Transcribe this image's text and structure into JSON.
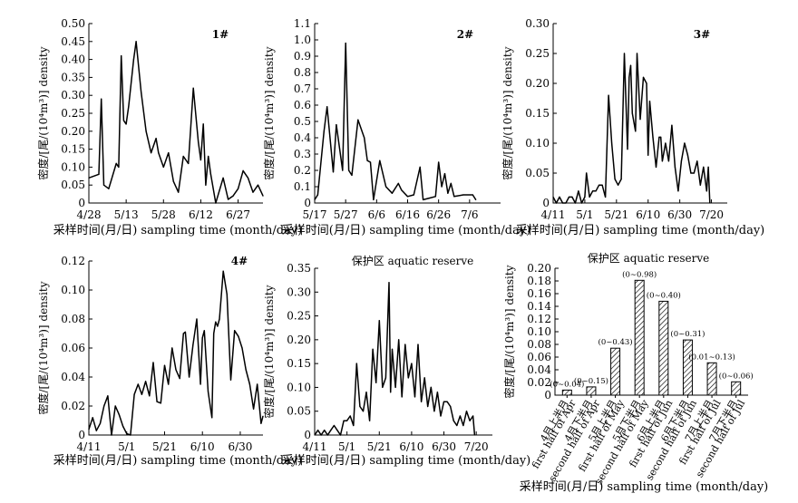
{
  "chart_data": [
    {
      "type": "line",
      "title": "1#",
      "xlabel": "采样时间(月/日) sampling time (month/day)",
      "ylabel": "密度/[尾/(10⁴m³)] density",
      "x_ticks": [
        "4/28",
        "5/13",
        "5/28",
        "6/12",
        "6/27"
      ],
      "y_ticks": [
        "0",
        "0.05",
        "0.10",
        "0.15",
        "0.20",
        "0.25",
        "0.30",
        "0.35",
        "0.40",
        "0.45",
        "0.50"
      ],
      "ylim": [
        0,
        0.5
      ],
      "x": [
        "4/28",
        "5/2",
        "5/3",
        "5/4",
        "5/6",
        "5/9",
        "5/10",
        "5/11",
        "5/12",
        "5/13",
        "5/14",
        "5/16",
        "5/17",
        "5/19",
        "5/21",
        "5/23",
        "5/25",
        "5/26",
        "5/28",
        "5/30",
        "6/1",
        "6/3",
        "6/5",
        "6/7",
        "6/9",
        "6/11",
        "6/12",
        "6/13",
        "6/14",
        "6/15",
        "6/16",
        "6/18",
        "6/21",
        "6/23",
        "6/25",
        "6/27",
        "6/29",
        "7/1",
        "7/3",
        "7/5",
        "7/7"
      ],
      "y": [
        0.07,
        0.08,
        0.29,
        0.05,
        0.04,
        0.11,
        0.1,
        0.41,
        0.23,
        0.22,
        0.27,
        0.4,
        0.45,
        0.31,
        0.2,
        0.14,
        0.18,
        0.14,
        0.1,
        0.14,
        0.06,
        0.03,
        0.13,
        0.11,
        0.32,
        0.17,
        0.12,
        0.22,
        0.05,
        0.13,
        0.08,
        0.0,
        0.07,
        0.01,
        0.02,
        0.04,
        0.09,
        0.07,
        0.03,
        0.05,
        0.02
      ]
    },
    {
      "type": "line",
      "title": "2#",
      "xlabel": "采样时间(月/日) sampling time (month/day)",
      "ylabel": "密度/[尾/(10⁴m³)] density",
      "x_ticks": [
        "5/17",
        "5/27",
        "6/6",
        "6/16",
        "6/26",
        "7/6"
      ],
      "y_ticks": [
        "0",
        "0.1",
        "0.2",
        "0.3",
        "0.4",
        "0.5",
        "0.6",
        "0.7",
        "0.8",
        "0.9",
        "1.0",
        "1.1"
      ],
      "ylim": [
        0,
        1.1
      ],
      "x": [
        "5/17",
        "5/18",
        "5/20",
        "5/21",
        "5/23",
        "5/24",
        "5/26",
        "5/27",
        "5/28",
        "5/29",
        "5/31",
        "6/2",
        "6/3",
        "6/4",
        "6/5",
        "6/7",
        "6/9",
        "6/11",
        "6/13",
        "6/14",
        "6/16",
        "6/18",
        "6/20",
        "6/21",
        "6/23",
        "6/25",
        "6/26",
        "6/27",
        "6/28",
        "6/29",
        "6/30",
        "7/1",
        "7/4",
        "7/7",
        "7/8"
      ],
      "y": [
        0.02,
        0.05,
        0.44,
        0.59,
        0.19,
        0.48,
        0.2,
        0.98,
        0.2,
        0.17,
        0.51,
        0.4,
        0.26,
        0.25,
        0.02,
        0.26,
        0.1,
        0.06,
        0.12,
        0.08,
        0.04,
        0.05,
        0.22,
        0.02,
        0.03,
        0.04,
        0.25,
        0.1,
        0.18,
        0.06,
        0.12,
        0.04,
        0.05,
        0.05,
        0.02
      ]
    },
    {
      "type": "line",
      "title": "3#",
      "xlabel": "采样时间(月/日) sampling time (month/day)",
      "ylabel": "密度/[尾/(10⁴m³)] density",
      "x_ticks": [
        "4/11",
        "5/1",
        "5/21",
        "6/10",
        "6/30",
        "7/20"
      ],
      "y_ticks": [
        "0",
        "0.05",
        "0.10",
        "0.15",
        "0.20",
        "0.25",
        "0.30"
      ],
      "ylim": [
        0,
        0.3
      ],
      "x": [
        "4/11",
        "4/13",
        "4/15",
        "4/17",
        "4/19",
        "4/21",
        "4/23",
        "4/25",
        "4/27",
        "4/29",
        "5/1",
        "5/2",
        "5/4",
        "5/6",
        "5/8",
        "5/10",
        "5/12",
        "5/14",
        "5/16",
        "5/18",
        "5/20",
        "5/22",
        "5/24",
        "5/26",
        "5/28",
        "5/29",
        "5/30",
        "5/31",
        "6/2",
        "6/3",
        "6/5",
        "6/7",
        "6/9",
        "6/10",
        "6/11",
        "6/13",
        "6/15",
        "6/17",
        "6/18",
        "6/19",
        "6/21",
        "6/23",
        "6/25",
        "6/27",
        "6/29",
        "7/1",
        "7/3",
        "7/5",
        "7/7",
        "7/9",
        "7/11",
        "7/13",
        "7/15",
        "7/17",
        "7/18",
        "7/19"
      ],
      "y": [
        0.01,
        0.0,
        0.01,
        0.0,
        0.0,
        0.01,
        0.01,
        0.0,
        0.02,
        0.0,
        0.01,
        0.05,
        0.01,
        0.02,
        0.02,
        0.03,
        0.03,
        0.01,
        0.18,
        0.1,
        0.04,
        0.03,
        0.04,
        0.25,
        0.09,
        0.21,
        0.23,
        0.15,
        0.12,
        0.25,
        0.14,
        0.21,
        0.2,
        0.08,
        0.17,
        0.11,
        0.06,
        0.11,
        0.11,
        0.07,
        0.1,
        0.07,
        0.13,
        0.06,
        0.02,
        0.07,
        0.1,
        0.08,
        0.05,
        0.05,
        0.07,
        0.03,
        0.06,
        0.02,
        0.06,
        0.0
      ]
    },
    {
      "type": "line",
      "title": "4#",
      "xlabel": "采样时间(月/日) sampling time (month/day)",
      "ylabel": "密度/[尾/(10⁴m³)] density",
      "x_ticks": [
        "4/11",
        "5/1",
        "5/21",
        "6/10",
        "6/30"
      ],
      "y_ticks": [
        "0",
        "0.02",
        "0.04",
        "0.06",
        "0.08",
        "0.10",
        "0.12"
      ],
      "ylim": [
        0,
        0.12
      ],
      "x": [
        "4/11",
        "4/13",
        "4/15",
        "4/17",
        "4/19",
        "4/21",
        "4/23",
        "4/25",
        "4/27",
        "4/29",
        "5/1",
        "5/3",
        "5/5",
        "5/7",
        "5/9",
        "5/11",
        "5/13",
        "5/15",
        "5/17",
        "5/19",
        "5/21",
        "5/23",
        "5/25",
        "5/27",
        "5/29",
        "5/31",
        "6/1",
        "6/3",
        "6/5",
        "6/7",
        "6/8",
        "6/9",
        "6/10",
        "6/11",
        "6/13",
        "6/15",
        "6/16",
        "6/17",
        "6/18",
        "6/19",
        "6/21",
        "6/23",
        "6/25",
        "6/27",
        "6/29",
        "7/1",
        "7/3",
        "7/5",
        "7/7",
        "7/9",
        "7/11",
        "7/12"
      ],
      "y": [
        0.004,
        0.012,
        0.003,
        0.008,
        0.02,
        0.027,
        0.0,
        0.02,
        0.014,
        0.006,
        0.001,
        0.0,
        0.028,
        0.035,
        0.028,
        0.037,
        0.027,
        0.05,
        0.023,
        0.022,
        0.048,
        0.035,
        0.06,
        0.045,
        0.039,
        0.07,
        0.071,
        0.04,
        0.062,
        0.08,
        0.058,
        0.035,
        0.067,
        0.072,
        0.03,
        0.012,
        0.07,
        0.078,
        0.075,
        0.08,
        0.113,
        0.097,
        0.038,
        0.072,
        0.068,
        0.06,
        0.045,
        0.035,
        0.018,
        0.035,
        0.008,
        0.013
      ]
    },
    {
      "type": "line",
      "title": "保护区 aquatic reserve",
      "xlabel": "采样时间(月/日) sampling time (month/day)",
      "ylabel": "密度/[尾/(10⁴m³)] density",
      "x_ticks": [
        "4/11",
        "5/1",
        "5/21",
        "6/10",
        "6/30",
        "7/20"
      ],
      "y_ticks": [
        "0",
        "0.05",
        "0.10",
        "0.15",
        "0.20",
        "0.25",
        "0.30",
        "0.35"
      ],
      "ylim": [
        0,
        0.35
      ],
      "x": [
        "4/11",
        "4/13",
        "4/15",
        "4/17",
        "4/19",
        "4/21",
        "4/23",
        "4/25",
        "4/27",
        "4/29",
        "5/1",
        "5/3",
        "5/5",
        "5/7",
        "5/9",
        "5/11",
        "5/13",
        "5/15",
        "5/17",
        "5/19",
        "5/21",
        "5/23",
        "5/25",
        "5/27",
        "5/28",
        "5/29",
        "5/31",
        "6/2",
        "6/4",
        "6/6",
        "6/8",
        "6/10",
        "6/12",
        "6/14",
        "6/16",
        "6/18",
        "6/20",
        "6/22",
        "6/24",
        "6/26",
        "6/28",
        "6/30",
        "7/2",
        "7/4",
        "7/6",
        "7/8",
        "7/10",
        "7/12",
        "7/14",
        "7/16",
        "7/18",
        "7/19"
      ],
      "y": [
        0.0,
        0.01,
        0.0,
        0.01,
        0.0,
        0.01,
        0.02,
        0.01,
        0.0,
        0.03,
        0.03,
        0.04,
        0.02,
        0.15,
        0.06,
        0.05,
        0.09,
        0.03,
        0.18,
        0.11,
        0.24,
        0.1,
        0.12,
        0.32,
        0.09,
        0.18,
        0.1,
        0.2,
        0.08,
        0.19,
        0.12,
        0.15,
        0.08,
        0.19,
        0.07,
        0.12,
        0.06,
        0.1,
        0.05,
        0.09,
        0.04,
        0.07,
        0.07,
        0.06,
        0.03,
        0.02,
        0.04,
        0.02,
        0.05,
        0.03,
        0.04,
        0.0
      ]
    },
    {
      "type": "bar",
      "title": "保护区 aquatic reserve",
      "xlabel": "采样时间(月/日) sampling time (month/day)",
      "ylabel": "密度/[尾/(10⁴m³)] density",
      "y_ticks": [
        "0",
        "0.02",
        "0.04",
        "0.06",
        "0.08",
        "0.10",
        "0.12",
        "0.14",
        "0.16",
        "0.18",
        "0.20"
      ],
      "ylim": [
        0,
        0.2
      ],
      "categories": [
        {
          "cn": "4月上半月",
          "en": "first half of Apr"
        },
        {
          "cn": "4月下半月",
          "en": "second half of Apr"
        },
        {
          "cn": "5月上半月",
          "en": "first half of May"
        },
        {
          "cn": "5月下半月",
          "en": "second half of May"
        },
        {
          "cn": "6月上半月",
          "en": "first half of Jun"
        },
        {
          "cn": "6月下半月",
          "en": "second half of Jun"
        },
        {
          "cn": "7月上半月",
          "en": "first half of Jul"
        },
        {
          "cn": "7月下半月",
          "en": "second half of Jul"
        }
      ],
      "values": [
        0.008,
        0.013,
        0.074,
        0.181,
        0.148,
        0.087,
        0.051,
        0.021
      ],
      "ranges": [
        "(0~0.04)",
        "(0~0.15)",
        "(0~0.43)",
        "(0~0.98)",
        "(0~0.40)",
        "(0~0.31)",
        "(0.01~0.13)",
        "(0~0.06)"
      ],
      "bar_pattern": "diagonal-hatch"
    }
  ]
}
